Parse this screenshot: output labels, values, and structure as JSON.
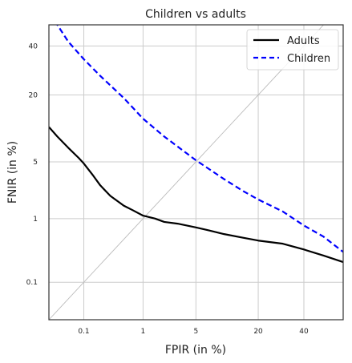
{
  "chart_data": {
    "type": "line",
    "title": "Children vs adults",
    "xlabel": "FPIR (in %)",
    "ylabel": "FNIR (in %)",
    "xscale": "probit",
    "yscale": "probit",
    "xlim": [
      0.02,
      60
    ],
    "ylim": [
      0.02,
      50
    ],
    "xticks": [
      0.1,
      1,
      5,
      20,
      40
    ],
    "xtick_labels": [
      "0.1",
      "1",
      "5",
      "20",
      "40"
    ],
    "yticks": [
      0.1,
      1,
      5,
      20,
      40
    ],
    "ytick_labels": [
      "0.1",
      "1",
      "5",
      "20",
      "40"
    ],
    "grid": true,
    "legend": "top-right",
    "reference_line": "y = x",
    "series": [
      {
        "name": "Adults",
        "color": "#000000",
        "style": "solid",
        "x": [
          0.02,
          0.03,
          0.05,
          0.08,
          0.1,
          0.15,
          0.2,
          0.3,
          0.5,
          0.7,
          1,
          1.5,
          2,
          3,
          5,
          7,
          10,
          15,
          20,
          30,
          40,
          50,
          60
        ],
        "y": [
          11,
          9,
          7,
          5.5,
          4.8,
          3.5,
          2.7,
          2,
          1.5,
          1.3,
          1.1,
          1.0,
          0.9,
          0.85,
          0.75,
          0.68,
          0.6,
          0.53,
          0.48,
          0.43,
          0.35,
          0.28,
          0.22
        ]
      },
      {
        "name": "Children",
        "color": "#0000ff",
        "style": "dashed",
        "x": [
          0.02,
          0.03,
          0.05,
          0.1,
          0.2,
          0.5,
          1,
          2,
          5,
          10,
          15,
          20,
          30,
          40,
          50,
          60
        ],
        "y": [
          55,
          50,
          42,
          34,
          27,
          19,
          13,
          9,
          5.2,
          3.2,
          2.3,
          1.8,
          1.25,
          0.8,
          0.55,
          0.32
        ]
      }
    ]
  }
}
